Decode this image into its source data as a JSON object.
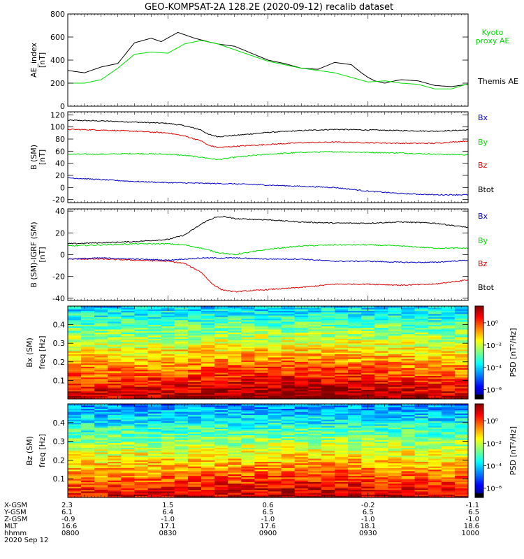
{
  "title": "GEO-KOMPSAT-2A 128.2E (2020-09-12) recalib dataset",
  "colors": {
    "black": "#000000",
    "green": "#00dd00",
    "red": "#dd0000",
    "blue": "#0000cc"
  },
  "chart_data": [
    {
      "type": "line",
      "ylabel": "AE_index",
      "yunit": "[nT]",
      "ylim": [
        0,
        800
      ],
      "yticks": [
        "0",
        "200",
        "400",
        "600",
        "800"
      ],
      "xrange": [
        0,
        120
      ],
      "series": [
        {
          "name": "Themis AE",
          "color": "#000000",
          "x": [
            0,
            5,
            10,
            15,
            20,
            25,
            28,
            33,
            38,
            42,
            45,
            50,
            55,
            60,
            65,
            70,
            75,
            80,
            85,
            88,
            90,
            92,
            95,
            98,
            100,
            105,
            110,
            115,
            120
          ],
          "y": [
            310,
            290,
            340,
            370,
            550,
            590,
            560,
            640,
            590,
            560,
            540,
            520,
            460,
            400,
            370,
            330,
            320,
            380,
            360,
            290,
            250,
            220,
            200,
            220,
            230,
            220,
            180,
            170,
            190
          ]
        },
        {
          "name": "Kyoto proxy AE",
          "color": "#00dd00",
          "x": [
            0,
            5,
            10,
            15,
            20,
            25,
            30,
            35,
            40,
            45,
            50,
            55,
            60,
            65,
            70,
            75,
            80,
            85,
            90,
            95,
            100,
            105,
            110,
            115,
            120
          ],
          "y": [
            200,
            200,
            230,
            330,
            450,
            470,
            460,
            540,
            570,
            540,
            490,
            440,
            390,
            360,
            330,
            310,
            290,
            250,
            210,
            220,
            200,
            190,
            150,
            150,
            195
          ]
        }
      ],
      "legend": [
        {
          "label": "Kyoto",
          "color": "#00dd00"
        },
        {
          "label": "proxy AE",
          "color": "#00dd00"
        },
        {
          "label": "Themis AE",
          "color": "#000000"
        }
      ]
    },
    {
      "type": "line",
      "ylabel": "B (SM)",
      "yunit": "[nT]",
      "ylim": [
        -25,
        125
      ],
      "yticks": [
        "-20",
        "0",
        "20",
        "40",
        "60",
        "80",
        "100",
        "120"
      ],
      "xrange": [
        0,
        120
      ],
      "series": [
        {
          "name": "Btot",
          "color": "#000000",
          "x": [
            0,
            10,
            20,
            30,
            35,
            40,
            42,
            45,
            50,
            60,
            70,
            80,
            90,
            100,
            110,
            120
          ],
          "y": [
            111,
            110,
            108,
            106,
            102,
            95,
            88,
            84,
            86,
            91,
            94,
            96,
            95,
            94,
            93,
            95
          ]
        },
        {
          "name": "By",
          "color": "#00dd00",
          "x": [
            0,
            10,
            20,
            30,
            35,
            40,
            45,
            50,
            60,
            70,
            80,
            90,
            100,
            110,
            120
          ],
          "y": [
            55,
            55,
            56,
            55,
            53,
            50,
            46,
            50,
            55,
            58,
            59,
            58,
            57,
            55,
            54
          ]
        },
        {
          "name": "Bz",
          "color": "#dd0000",
          "x": [
            0,
            10,
            20,
            30,
            35,
            40,
            42,
            45,
            50,
            60,
            70,
            80,
            90,
            100,
            110,
            120
          ],
          "y": [
            96,
            95,
            93,
            90,
            85,
            77,
            70,
            66,
            68,
            71,
            74,
            75,
            74,
            73,
            73,
            77
          ]
        },
        {
          "name": "Bx",
          "color": "#0000cc",
          "x": [
            0,
            10,
            20,
            30,
            40,
            50,
            60,
            70,
            80,
            90,
            100,
            110,
            120
          ],
          "y": [
            16,
            13,
            10,
            8,
            7,
            6,
            4,
            2,
            0,
            -6,
            -10,
            -12,
            -12
          ]
        }
      ],
      "legend": [
        {
          "label": "Bx",
          "color": "#0000cc"
        },
        {
          "label": "By",
          "color": "#00dd00"
        },
        {
          "label": "Bz",
          "color": "#dd0000"
        },
        {
          "label": "Btot",
          "color": "#000000"
        }
      ]
    },
    {
      "type": "line",
      "ylabel": "B (SM)-IGRF (SM)",
      "yunit": "[nT]",
      "ylim": [
        -42,
        42
      ],
      "yticks": [
        "-40",
        "-20",
        "0",
        "20",
        "40"
      ],
      "xrange": [
        0,
        120
      ],
      "series": [
        {
          "name": "Btot",
          "color": "#000000",
          "x": [
            0,
            10,
            20,
            30,
            35,
            38,
            41,
            44,
            47,
            50,
            60,
            70,
            80,
            90,
            100,
            110,
            120
          ],
          "y": [
            10,
            11,
            12,
            14,
            18,
            24,
            30,
            34,
            35,
            33,
            32,
            30,
            29,
            29,
            30,
            29,
            25
          ]
        },
        {
          "name": "By",
          "color": "#00dd00",
          "x": [
            0,
            10,
            20,
            30,
            35,
            40,
            45,
            50,
            60,
            70,
            80,
            90,
            100,
            110,
            120
          ],
          "y": [
            8,
            9,
            10,
            10,
            9,
            6,
            2,
            0,
            5,
            8,
            9,
            9,
            8,
            6,
            6
          ]
        },
        {
          "name": "Bz",
          "color": "#dd0000",
          "x": [
            0,
            10,
            20,
            30,
            35,
            40,
            43,
            46,
            50,
            60,
            70,
            80,
            90,
            100,
            110,
            120
          ],
          "y": [
            -4,
            -4,
            -5,
            -6,
            -8,
            -16,
            -26,
            -32,
            -34,
            -32,
            -30,
            -27,
            -27,
            -28,
            -27,
            -23
          ]
        },
        {
          "name": "Bx",
          "color": "#0000cc",
          "x": [
            0,
            10,
            20,
            30,
            40,
            50,
            60,
            70,
            80,
            90,
            100,
            110,
            120
          ],
          "y": [
            -4,
            -3,
            -4,
            -5,
            -3,
            -3,
            -4,
            -4,
            -6,
            -6,
            -7,
            -7,
            -5
          ]
        }
      ],
      "legend": [
        {
          "label": "Bx",
          "color": "#0000cc"
        },
        {
          "label": "By",
          "color": "#00dd00"
        },
        {
          "label": "Bz",
          "color": "#dd0000"
        },
        {
          "label": "Btot",
          "color": "#000000"
        }
      ]
    },
    {
      "type": "heatmap",
      "ylabel": "Bx (SM)",
      "ysublabel": "freq [Hz]",
      "ylim": [
        0,
        0.5
      ],
      "yticks": [
        "0.1",
        "0.2",
        "0.3",
        "0.4"
      ],
      "colorbar": {
        "label": "PSD [nT²/Hz]",
        "ticks": [
          "10⁰",
          "10⁻²",
          "10⁻⁴",
          "10⁻⁶"
        ]
      },
      "description": "low-frequency power enhanced, strongest near 0.1-0.25 Hz mid-interval"
    },
    {
      "type": "heatmap",
      "ylabel": "Bz (SM)",
      "ysublabel": "freq [Hz]",
      "ylim": [
        0,
        0.5
      ],
      "yticks": [
        "0.1",
        "0.2",
        "0.3",
        "0.4"
      ],
      "colorbar": {
        "label": "PSD [nT²/Hz]",
        "ticks": [
          "10⁰",
          "10⁻²",
          "10⁻⁴",
          "10⁻⁶"
        ]
      },
      "description": "power concentrated below 0.15 Hz, weaker than Bx"
    }
  ],
  "ephemeris": {
    "rows": [
      {
        "label": "X-GSM",
        "values": [
          "2.3",
          "1.5",
          "0.6",
          "-0.2",
          "-1.1"
        ]
      },
      {
        "label": "Y-GSM",
        "values": [
          "6.1",
          "6.4",
          "6.5",
          "6.5",
          "6.5"
        ]
      },
      {
        "label": "Z-GSM",
        "values": [
          "-0.9",
          "-1.0",
          "-1.0",
          "-1.0",
          "-1.0"
        ]
      },
      {
        "label": "MLT",
        "values": [
          "16.6",
          "17.1",
          "17.6",
          "18.1",
          "18.6"
        ]
      },
      {
        "label": "hhmm",
        "values": [
          "0800",
          "0830",
          "0900",
          "0930",
          "1000"
        ]
      }
    ],
    "date": "2020 Sep 12"
  }
}
